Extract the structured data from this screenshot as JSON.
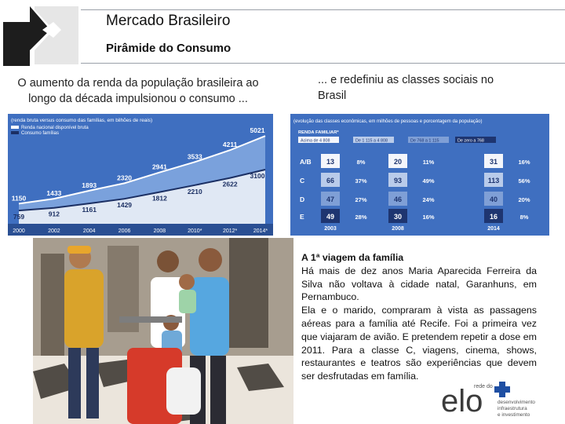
{
  "header": {
    "title": "Mercado Brasileiro",
    "subtitle": "Pirâmide do Consumo"
  },
  "captions": {
    "left": "O aumento da renda da população brasileira ao longo da década impulsionou o consumo ...",
    "right": "... e redefiniu as classes sociais no Brasil"
  },
  "chart_data": [
    {
      "type": "area",
      "title": "(renda bruta versus consumo das famílias, em bilhões de reais)",
      "legend": [
        "Renda nacional disponível bruta",
        "Consumo famílias"
      ],
      "categories": [
        "2000",
        "2002",
        "2004",
        "2006",
        "2008",
        "2010*",
        "2012*",
        "2014*"
      ],
      "series": [
        {
          "name": "Renda nacional disponível bruta",
          "values": [
            1150,
            1433,
            1893,
            2320,
            2941,
            3533,
            4211,
            5021
          ]
        },
        {
          "name": "Consumo famílias",
          "values": [
            759,
            912,
            1161,
            1429,
            1812,
            2210,
            2622,
            3100
          ]
        }
      ],
      "ylim": [
        0,
        5300
      ]
    },
    {
      "type": "table",
      "title": "(evolução das classes econômicas, em milhões de pessoas e porcentagem da população)",
      "legend_title": "RENDA FAMILIAR*",
      "legend": [
        "Acima de 4 808",
        "De 1 115 a 4 808",
        "De 768 a 1 115",
        "De zero a 768"
      ],
      "years": [
        "2003",
        "2008",
        "2014"
      ],
      "rows": [
        {
          "class": "A/B",
          "cells": [
            [
              "13",
              "8%"
            ],
            [
              "20",
              "11%"
            ],
            [
              "31",
              "16%"
            ]
          ]
        },
        {
          "class": "C",
          "cells": [
            [
              "66",
              "37%"
            ],
            [
              "93",
              "49%"
            ],
            [
              "113",
              "56%"
            ]
          ]
        },
        {
          "class": "D",
          "cells": [
            [
              "47",
              "27%"
            ],
            [
              "46",
              "24%"
            ],
            [
              "40",
              "20%"
            ]
          ]
        },
        {
          "class": "E",
          "cells": [
            [
              "49",
              "28%"
            ],
            [
              "30",
              "16%"
            ],
            [
              "16",
              "8%"
            ]
          ]
        }
      ]
    }
  ],
  "story": {
    "title": "A 1ª viagem da família",
    "paragraph1": "Há mais de dez anos Maria Aparecida Ferreira da Silva não voltava à cidade natal, Garanhuns, em Pernambuco.",
    "paragraph2": "Ela e o marido, compraram à vista as passagens aéreas para a família até Recife. Foi a primeira vez que viajaram de avião. E pretendem repetir a dose em 2011. Para a classe C, viagens, cinema, shows, restaurantes e teatros são experiências que devem ser desfrutadas em família."
  },
  "brand": {
    "name": "elo",
    "tag_line1": "rede do",
    "tag_line2": "desenvolvimento",
    "tag_line3": "infraestrutura",
    "tag_line4": "e investimento"
  },
  "colors": {
    "chart_bg": "#3f6fc0",
    "line_income": "#ffffff",
    "line_consumption": "#1b2f63",
    "table_light": "#c9d6ee",
    "table_dark": "#1e3570",
    "brand_accent": "#1f4fa3"
  }
}
